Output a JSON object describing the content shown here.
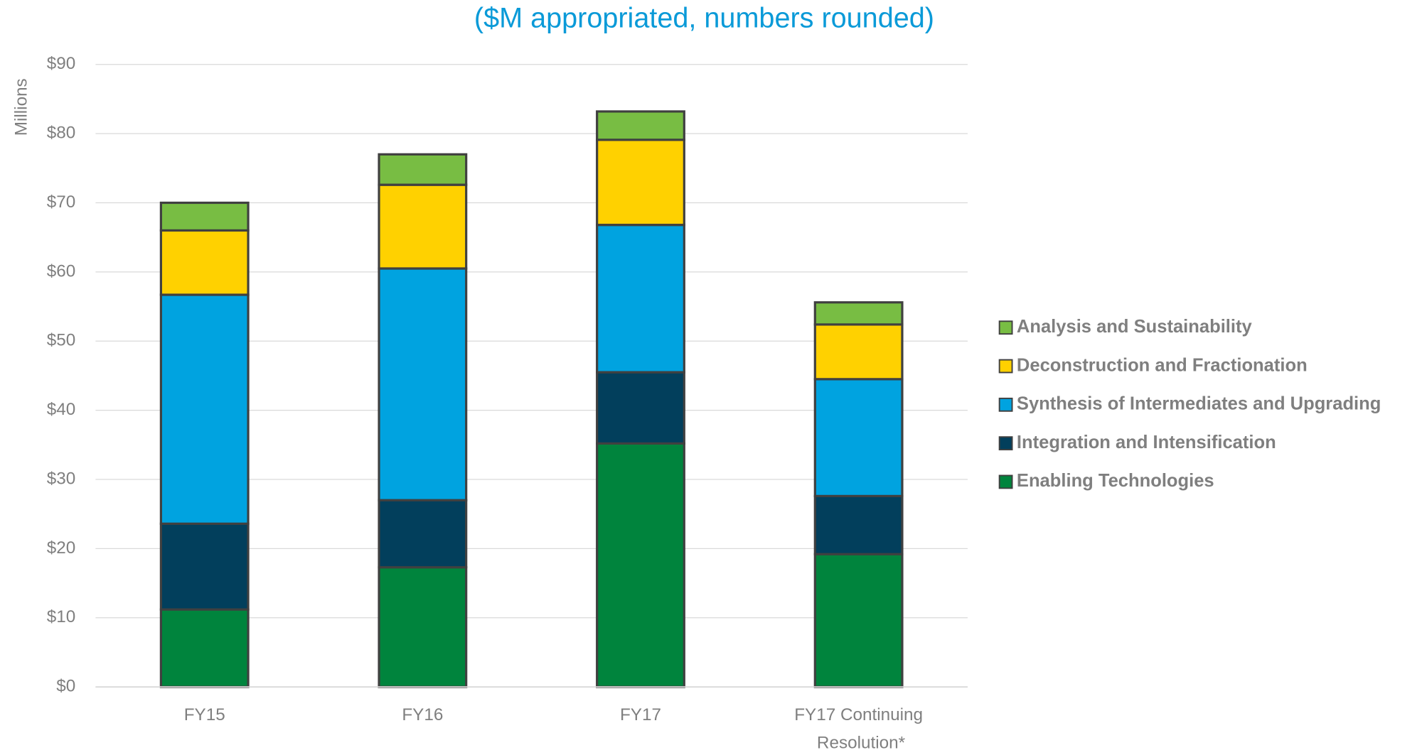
{
  "chart_data": {
    "type": "stacked_bar",
    "title": "($M appropriated, numbers rounded)",
    "y_label": "Millions",
    "categories": [
      "FY15",
      "FY16",
      "FY17",
      "FY17 Continuing Resolution*"
    ],
    "series": [
      {
        "name": "Enabling Technologies",
        "color": "#00843d",
        "values": [
          11.2,
          17.3,
          35.2,
          19.2
        ]
      },
      {
        "name": "Integration and Intensification",
        "color": "#023f5c",
        "values": [
          12.4,
          9.7,
          10.3,
          8.4
        ]
      },
      {
        "name": "Synthesis of Intermediates and Upgrading",
        "color": "#00a3e0",
        "values": [
          33.1,
          33.5,
          21.3,
          16.9
        ]
      },
      {
        "name": "Deconstruction and Fractionation",
        "color": "#ffd100",
        "values": [
          9.3,
          12.1,
          12.3,
          7.9
        ]
      },
      {
        "name": "Analysis and Sustainability",
        "color": "#78bd43",
        "values": [
          4.0,
          4.4,
          4.1,
          3.2
        ]
      }
    ],
    "ylim": [
      0,
      90
    ],
    "yticks": [
      {
        "value": 0,
        "label": "$0"
      },
      {
        "value": 10,
        "label": "$10"
      },
      {
        "value": 20,
        "label": "$20"
      },
      {
        "value": 30,
        "label": "$30"
      },
      {
        "value": 40,
        "label": "$40"
      },
      {
        "value": 50,
        "label": "$50"
      },
      {
        "value": 60,
        "label": "$60"
      },
      {
        "value": 70,
        "label": "$70"
      },
      {
        "value": 80,
        "label": "$80"
      },
      {
        "value": 90,
        "label": "$90"
      }
    ],
    "grid": true,
    "legend": "right"
  }
}
